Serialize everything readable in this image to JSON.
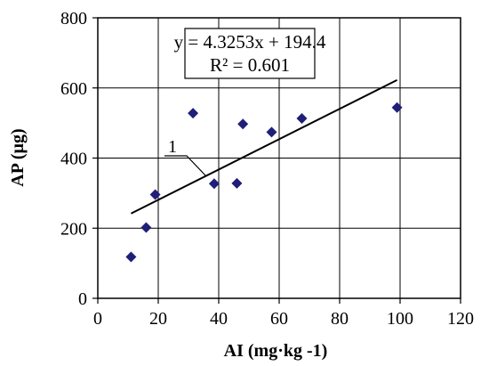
{
  "chart_data": {
    "type": "scatter",
    "title": "",
    "xlabel": "AI (mg·kg -1)",
    "ylabel": "AP (µg)",
    "xlim": [
      0,
      120
    ],
    "ylim": [
      0,
      800
    ],
    "xticks": [
      0,
      20,
      40,
      60,
      80,
      100,
      120
    ],
    "yticks": [
      0,
      200,
      400,
      600,
      800
    ],
    "grid": true,
    "legend": "none",
    "marker": "diamond",
    "marker_color": "#1f1f7a",
    "series": [
      {
        "points": [
          {
            "x": 11,
            "y": 118
          },
          {
            "x": 16,
            "y": 202
          },
          {
            "x": 19,
            "y": 296
          },
          {
            "x": 31.5,
            "y": 528
          },
          {
            "x": 38.5,
            "y": 327
          },
          {
            "x": 46,
            "y": 328
          },
          {
            "x": 48,
            "y": 497
          },
          {
            "x": 57.5,
            "y": 474
          },
          {
            "x": 67.5,
            "y": 513
          },
          {
            "x": 99,
            "y": 544
          }
        ]
      }
    ],
    "trendline": {
      "type": "linear",
      "slope": 4.3253,
      "intercept": 194.4,
      "x_range": [
        11,
        99
      ],
      "equation": "y = 4.3253x + 194.4",
      "r_squared": "R² = 0.601",
      "label": "1"
    }
  }
}
